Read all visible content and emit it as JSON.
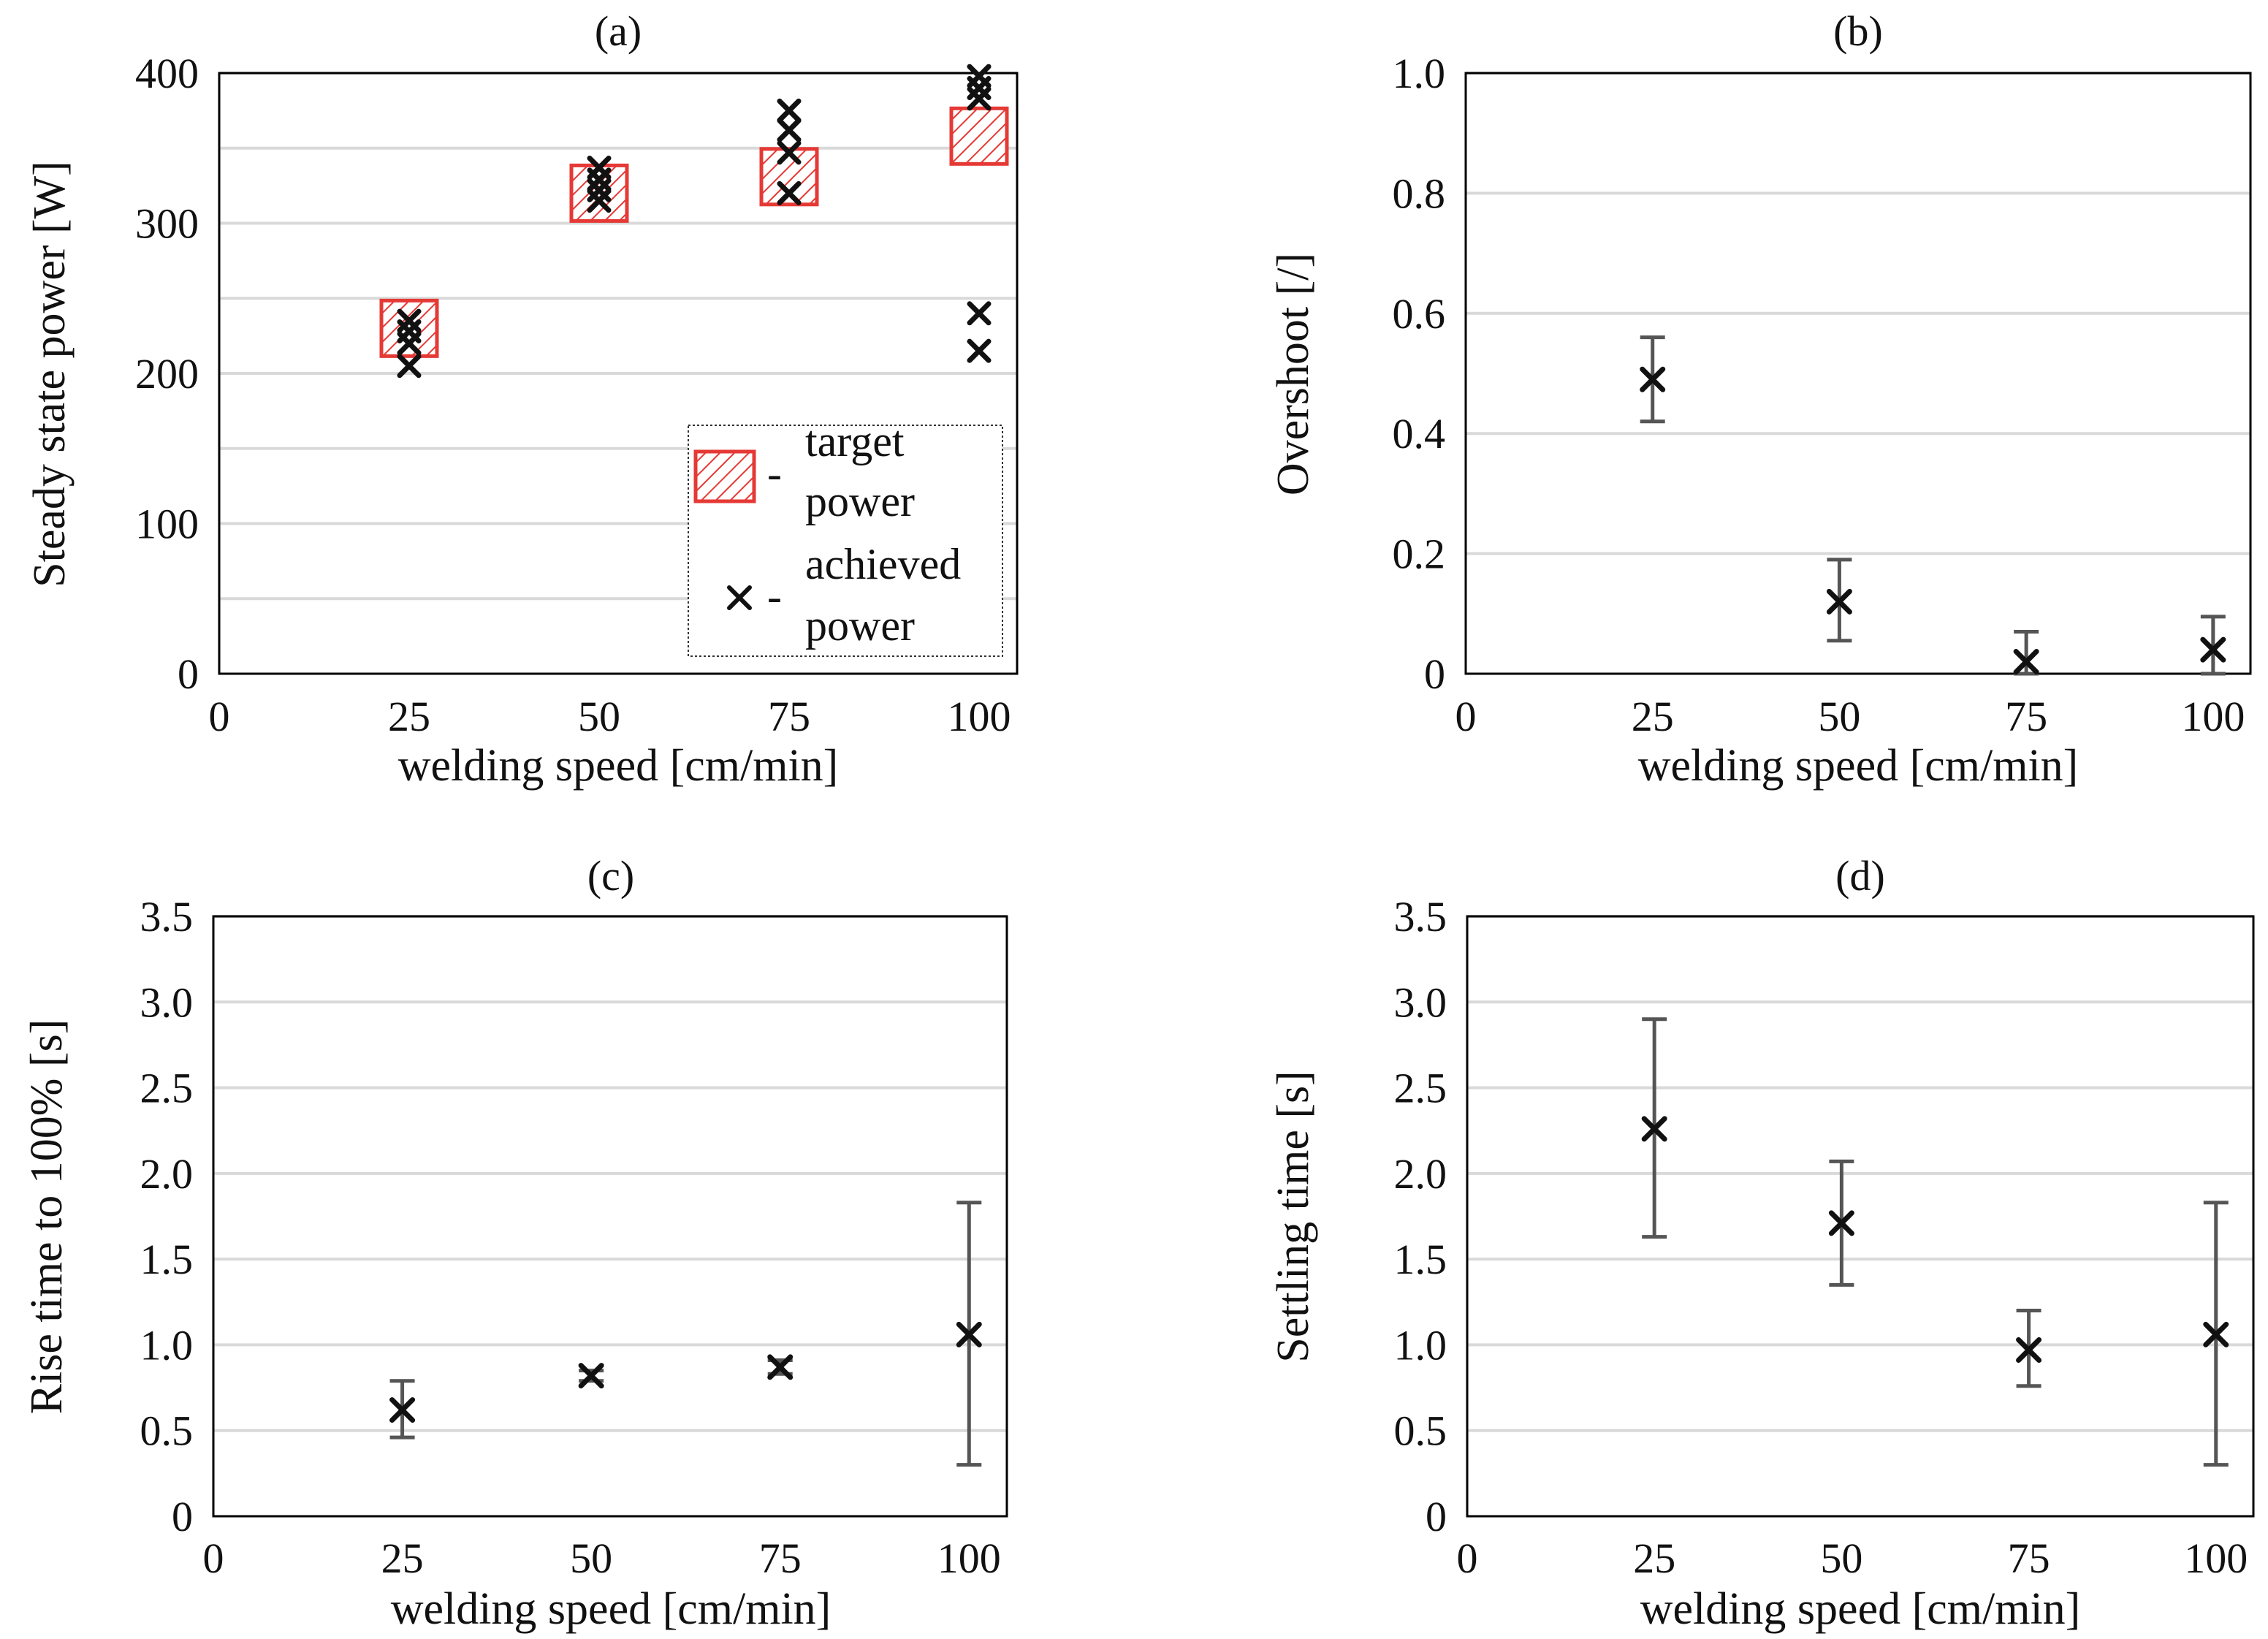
{
  "colors": {
    "target_fill": "#e53935",
    "marker": "#111111",
    "errorbar": "#555555",
    "gridline": "#d9d9d9",
    "frame": "#000000"
  },
  "chart_data": [
    {
      "id": "a",
      "type": "scatter",
      "title": "(a)",
      "xlabel": "welding speed [cm/min]",
      "ylabel": "Steady state power [W]",
      "xlim": [
        0,
        105
      ],
      "ylim": [
        0,
        400
      ],
      "xticks": [
        0,
        25,
        50,
        75,
        100
      ],
      "yticks": [
        0,
        100,
        200,
        300,
        400
      ],
      "ytick_labels": [
        "0",
        "100",
        "200",
        "300",
        "400"
      ],
      "gridlines": [
        50,
        100,
        150,
        200,
        250,
        300,
        350,
        400
      ],
      "legend": {
        "target_text": "- target power",
        "target_lines": [
          "target",
          "power"
        ],
        "achieved_text": "- achieved power",
        "achieved_lines": [
          "achieved",
          "power"
        ],
        "dash": "-"
      },
      "target_power": [
        {
          "x": 25,
          "y": 230
        },
        {
          "x": 50,
          "y": 320
        },
        {
          "x": 75,
          "y": 331
        },
        {
          "x": 100,
          "y": 358
        }
      ],
      "achieved_power": [
        {
          "x": 25,
          "y": 235
        },
        {
          "x": 25,
          "y": 228
        },
        {
          "x": 25,
          "y": 220
        },
        {
          "x": 25,
          "y": 205
        },
        {
          "x": 50,
          "y": 337
        },
        {
          "x": 50,
          "y": 329
        },
        {
          "x": 50,
          "y": 322
        },
        {
          "x": 50,
          "y": 315
        },
        {
          "x": 75,
          "y": 375
        },
        {
          "x": 75,
          "y": 362
        },
        {
          "x": 75,
          "y": 347
        },
        {
          "x": 75,
          "y": 320
        },
        {
          "x": 100,
          "y": 398
        },
        {
          "x": 100,
          "y": 390
        },
        {
          "x": 100,
          "y": 383
        },
        {
          "x": 100,
          "y": 240
        },
        {
          "x": 100,
          "y": 215
        }
      ]
    },
    {
      "id": "b",
      "type": "scatter",
      "title": "(b)",
      "xlabel": "welding speed [cm/min]",
      "ylabel": "Overshoot [/]",
      "xlim": [
        0,
        105
      ],
      "ylim": [
        0,
        1.0
      ],
      "xticks": [
        0,
        25,
        50,
        75,
        100
      ],
      "yticks": [
        0,
        0.2,
        0.4,
        0.6,
        0.8,
        1.0
      ],
      "ytick_labels": [
        "0",
        "0.2",
        "0.4",
        "0.6",
        "0.8",
        "1.0"
      ],
      "gridlines": [
        0.2,
        0.4,
        0.6,
        0.8,
        1.0
      ],
      "points": [
        {
          "x": 25,
          "y": 0.49,
          "lo": 0.42,
          "hi": 0.56
        },
        {
          "x": 50,
          "y": 0.12,
          "lo": 0.055,
          "hi": 0.19
        },
        {
          "x": 75,
          "y": 0.02,
          "lo": 0.0,
          "hi": 0.07
        },
        {
          "x": 100,
          "y": 0.04,
          "lo": 0.0,
          "hi": 0.095
        }
      ]
    },
    {
      "id": "c",
      "type": "scatter",
      "title": "(c)",
      "xlabel": "welding speed [cm/min]",
      "ylabel": "Rise time to 100% [s]",
      "xlim": [
        0,
        105
      ],
      "ylim": [
        0,
        3.5
      ],
      "xticks": [
        0,
        25,
        50,
        75,
        100
      ],
      "yticks": [
        0,
        0.5,
        1.0,
        1.5,
        2.0,
        2.5,
        3.0,
        3.5
      ],
      "ytick_labels": [
        "0",
        "0.5",
        "1.0",
        "1.5",
        "2.0",
        "2.5",
        "3.0",
        "3.5"
      ],
      "gridlines": [
        0.5,
        1.0,
        1.5,
        2.0,
        2.5,
        3.0,
        3.5
      ],
      "points": [
        {
          "x": 25,
          "y": 0.62,
          "lo": 0.46,
          "hi": 0.79
        },
        {
          "x": 50,
          "y": 0.82,
          "lo": 0.79,
          "hi": 0.85
        },
        {
          "x": 75,
          "y": 0.87,
          "lo": 0.83,
          "hi": 0.91
        },
        {
          "x": 100,
          "y": 1.06,
          "lo": 0.3,
          "hi": 1.83
        }
      ]
    },
    {
      "id": "d",
      "type": "scatter",
      "title": "(d)",
      "xlabel": "welding speed [cm/min]",
      "ylabel": "Settling time [s]",
      "xlim": [
        0,
        105
      ],
      "ylim": [
        0,
        3.5
      ],
      "xticks": [
        0,
        25,
        50,
        75,
        100
      ],
      "yticks": [
        0,
        0.5,
        1.0,
        1.5,
        2.0,
        2.5,
        3.0,
        3.5
      ],
      "ytick_labels": [
        "0",
        "0.5",
        "1.0",
        "1.5",
        "2.0",
        "2.5",
        "3.0",
        "3.5"
      ],
      "gridlines": [
        0.5,
        1.0,
        1.5,
        2.0,
        2.5,
        3.0,
        3.5
      ],
      "points": [
        {
          "x": 25,
          "y": 2.26,
          "lo": 1.63,
          "hi": 2.9
        },
        {
          "x": 50,
          "y": 1.71,
          "lo": 1.35,
          "hi": 2.07
        },
        {
          "x": 75,
          "y": 0.97,
          "lo": 0.76,
          "hi": 1.2
        },
        {
          "x": 100,
          "y": 1.06,
          "lo": 0.3,
          "hi": 1.83
        }
      ]
    }
  ]
}
